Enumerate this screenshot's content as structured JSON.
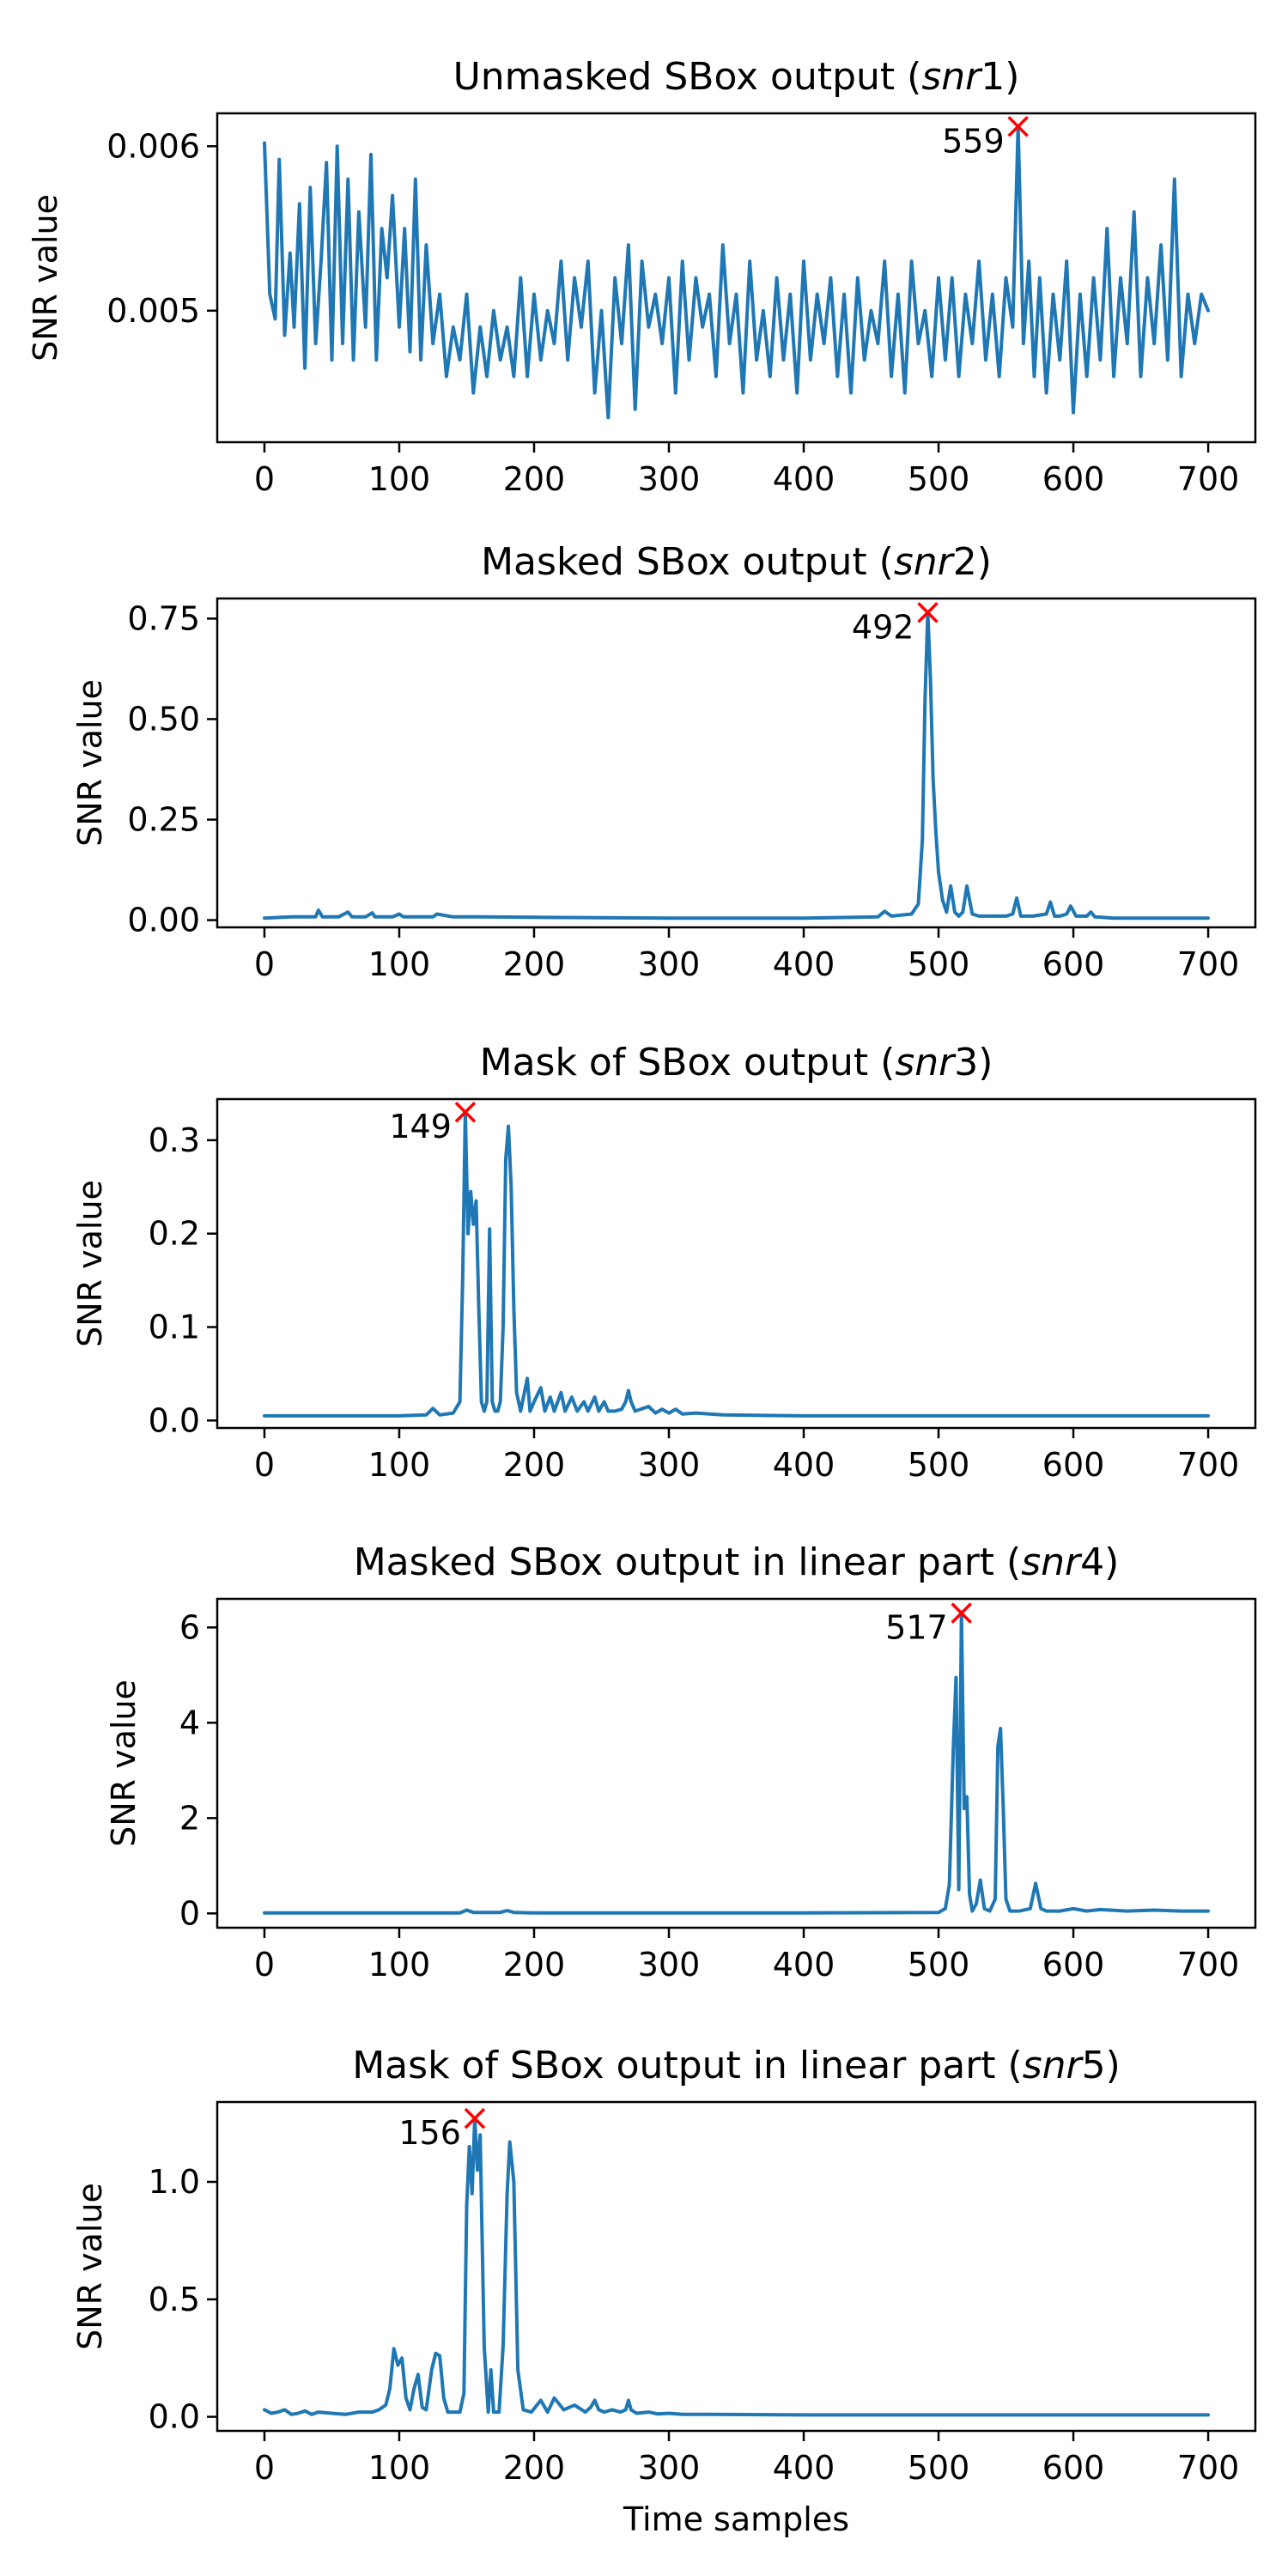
{
  "colors": {
    "series": "#1f77b4",
    "peak_marker": "#ff0000"
  },
  "chart_data": [
    {
      "type": "line",
      "title_prefix": "Unmasked SBox output (",
      "title_var": "snr",
      "title_suffix": "1)",
      "xlabel": "",
      "ylabel": "SNR value",
      "xlim": [
        -35,
        735
      ],
      "ylim": [
        0.0042,
        0.0062
      ],
      "xticks": [
        0,
        100,
        200,
        300,
        400,
        500,
        600,
        700
      ],
      "yticks": [
        0.005,
        0.006
      ],
      "ytick_labels": [
        "0.005",
        "0.006"
      ],
      "peak": {
        "x": 559,
        "y": 0.00612,
        "label": "559"
      },
      "series": [
        {
          "x": [
            0,
            4,
            8,
            11,
            15,
            19,
            22,
            26,
            30,
            34,
            38,
            42,
            46,
            50,
            54,
            58,
            62,
            66,
            70,
            75,
            79,
            83,
            87,
            91,
            95,
            100,
            104,
            108,
            112,
            116,
            120,
            125,
            130,
            135,
            140,
            145,
            150,
            155,
            160,
            165,
            170,
            175,
            180,
            185,
            190,
            195,
            200,
            205,
            210,
            215,
            220,
            225,
            230,
            235,
            240,
            245,
            250,
            255,
            260,
            265,
            270,
            275,
            280,
            285,
            290,
            295,
            300,
            305,
            310,
            315,
            320,
            325,
            330,
            335,
            340,
            345,
            350,
            355,
            360,
            365,
            370,
            375,
            380,
            385,
            390,
            395,
            400,
            405,
            410,
            415,
            420,
            425,
            430,
            435,
            440,
            445,
            450,
            455,
            460,
            465,
            470,
            475,
            480,
            485,
            490,
            495,
            500,
            505,
            510,
            515,
            520,
            525,
            530,
            535,
            540,
            545,
            550,
            555,
            559,
            563,
            567,
            571,
            575,
            580,
            585,
            590,
            595,
            600,
            605,
            610,
            615,
            620,
            625,
            630,
            635,
            640,
            645,
            650,
            655,
            660,
            665,
            670,
            675,
            680,
            685,
            690,
            695,
            700
          ],
          "values": [
            0.00602,
            0.0051,
            0.00495,
            0.00592,
            0.00485,
            0.00535,
            0.0049,
            0.00565,
            0.00465,
            0.00575,
            0.0048,
            0.0053,
            0.0059,
            0.0047,
            0.006,
            0.0048,
            0.0058,
            0.0047,
            0.0056,
            0.0049,
            0.00595,
            0.0047,
            0.0055,
            0.0052,
            0.0057,
            0.0049,
            0.0055,
            0.00475,
            0.0058,
            0.0047,
            0.0054,
            0.0048,
            0.0051,
            0.0046,
            0.0049,
            0.0047,
            0.0051,
            0.0045,
            0.0049,
            0.0046,
            0.005,
            0.0047,
            0.0049,
            0.0046,
            0.0052,
            0.0046,
            0.0051,
            0.0047,
            0.005,
            0.0048,
            0.0053,
            0.0047,
            0.0052,
            0.0049,
            0.0053,
            0.0045,
            0.005,
            0.00435,
            0.0052,
            0.0048,
            0.0054,
            0.0044,
            0.0053,
            0.0049,
            0.0051,
            0.0048,
            0.0052,
            0.0045,
            0.0053,
            0.0047,
            0.0052,
            0.0049,
            0.0051,
            0.0046,
            0.0054,
            0.0048,
            0.0051,
            0.0045,
            0.0053,
            0.0047,
            0.005,
            0.0046,
            0.0052,
            0.0047,
            0.0051,
            0.0045,
            0.0053,
            0.0047,
            0.0051,
            0.0048,
            0.0052,
            0.0046,
            0.0051,
            0.0045,
            0.0052,
            0.0047,
            0.005,
            0.0048,
            0.0053,
            0.0046,
            0.0051,
            0.0045,
            0.0053,
            0.0048,
            0.005,
            0.0046,
            0.0052,
            0.0047,
            0.0052,
            0.0046,
            0.0051,
            0.0048,
            0.0053,
            0.0047,
            0.0051,
            0.0046,
            0.0052,
            0.0049,
            0.00612,
            0.0048,
            0.0053,
            0.0046,
            0.0052,
            0.0045,
            0.0051,
            0.0047,
            0.0053,
            0.00438,
            0.0051,
            0.0046,
            0.0052,
            0.0047,
            0.0055,
            0.0046,
            0.0052,
            0.0048,
            0.0056,
            0.0046,
            0.0052,
            0.0048,
            0.0054,
            0.0047,
            0.0058,
            0.0046,
            0.0051,
            0.0048,
            0.0051,
            0.005
          ]
        }
      ]
    },
    {
      "type": "line",
      "title_prefix": "Masked SBox output (",
      "title_var": "snr",
      "title_suffix": "2)",
      "xlabel": "",
      "ylabel": "SNR value",
      "xlim": [
        -35,
        735
      ],
      "ylim": [
        -0.018,
        0.8
      ],
      "xticks": [
        0,
        100,
        200,
        300,
        400,
        500,
        600,
        700
      ],
      "yticks": [
        0,
        0.25,
        0.5,
        0.75
      ],
      "ytick_labels": [
        "0.00",
        "0.25",
        "0.50",
        "0.75"
      ],
      "peak": {
        "x": 492,
        "y": 0.765,
        "label": "492"
      },
      "series": [
        {
          "x": [
            0,
            20,
            38,
            40,
            43,
            55,
            62,
            65,
            75,
            80,
            82,
            95,
            100,
            103,
            115,
            125,
            128,
            140,
            160,
            200,
            300,
            400,
            455,
            460,
            465,
            480,
            485,
            488,
            490,
            492,
            494,
            496,
            498,
            500,
            503,
            506,
            509,
            512,
            515,
            518,
            521,
            525,
            530,
            540,
            550,
            555,
            558,
            561,
            565,
            570,
            580,
            583,
            586,
            590,
            595,
            598,
            602,
            610,
            613,
            616,
            630,
            700
          ],
          "values": [
            0.005,
            0.008,
            0.008,
            0.025,
            0.008,
            0.008,
            0.02,
            0.008,
            0.008,
            0.018,
            0.008,
            0.008,
            0.015,
            0.008,
            0.008,
            0.008,
            0.015,
            0.008,
            0.008,
            0.007,
            0.005,
            0.005,
            0.008,
            0.022,
            0.01,
            0.015,
            0.04,
            0.2,
            0.55,
            0.765,
            0.6,
            0.35,
            0.22,
            0.12,
            0.05,
            0.02,
            0.085,
            0.02,
            0.01,
            0.02,
            0.085,
            0.015,
            0.01,
            0.01,
            0.01,
            0.015,
            0.055,
            0.01,
            0.01,
            0.01,
            0.015,
            0.045,
            0.01,
            0.01,
            0.015,
            0.035,
            0.01,
            0.01,
            0.02,
            0.008,
            0.005,
            0.005
          ]
        }
      ]
    },
    {
      "type": "line",
      "title_prefix": "Mask of SBox output (",
      "title_var": "snr",
      "title_suffix": "3)",
      "xlabel": "",
      "ylabel": "SNR value",
      "xlim": [
        -35,
        735
      ],
      "ylim": [
        -0.008,
        0.344
      ],
      "xticks": [
        0,
        100,
        200,
        300,
        400,
        500,
        600,
        700
      ],
      "yticks": [
        0,
        0.1,
        0.2,
        0.3
      ],
      "ytick_labels": [
        "0.0",
        "0.1",
        "0.2",
        "0.3"
      ],
      "peak": {
        "x": 149,
        "y": 0.33,
        "label": "149"
      },
      "series": [
        {
          "x": [
            0,
            50,
            100,
            120,
            125,
            130,
            140,
            145,
            147,
            149,
            151,
            153,
            155,
            157,
            159,
            161,
            163,
            165,
            167,
            169,
            171,
            173,
            175,
            177,
            179,
            181,
            183,
            185,
            187,
            190,
            195,
            197,
            200,
            205,
            208,
            212,
            215,
            220,
            223,
            228,
            232,
            237,
            240,
            245,
            248,
            252,
            255,
            260,
            265,
            268,
            270,
            272,
            275,
            285,
            290,
            295,
            300,
            305,
            310,
            320,
            340,
            400,
            500,
            600,
            700
          ],
          "values": [
            0.005,
            0.005,
            0.005,
            0.006,
            0.013,
            0.006,
            0.008,
            0.02,
            0.15,
            0.33,
            0.2,
            0.245,
            0.21,
            0.235,
            0.12,
            0.02,
            0.01,
            0.02,
            0.205,
            0.02,
            0.01,
            0.01,
            0.02,
            0.1,
            0.28,
            0.315,
            0.25,
            0.12,
            0.03,
            0.01,
            0.045,
            0.01,
            0.02,
            0.035,
            0.01,
            0.025,
            0.01,
            0.03,
            0.01,
            0.025,
            0.01,
            0.02,
            0.01,
            0.025,
            0.01,
            0.02,
            0.01,
            0.01,
            0.012,
            0.02,
            0.032,
            0.02,
            0.01,
            0.015,
            0.008,
            0.012,
            0.008,
            0.012,
            0.007,
            0.008,
            0.006,
            0.005,
            0.005,
            0.005,
            0.005
          ]
        }
      ]
    },
    {
      "type": "line",
      "title_prefix": "Masked SBox output in linear part (",
      "title_var": "snr",
      "title_suffix": "4)",
      "xlabel": "",
      "ylabel": "SNR value",
      "xlim": [
        -35,
        735
      ],
      "ylim": [
        -0.3,
        6.6
      ],
      "xticks": [
        0,
        100,
        200,
        300,
        400,
        500,
        600,
        700
      ],
      "yticks": [
        0,
        2,
        4,
        6
      ],
      "ytick_labels": [
        "0",
        "2",
        "4",
        "6"
      ],
      "peak": {
        "x": 517,
        "y": 6.3,
        "label": "517"
      },
      "series": [
        {
          "x": [
            0,
            100,
            145,
            150,
            155,
            175,
            180,
            185,
            200,
            300,
            400,
            500,
            505,
            508,
            511,
            513,
            515,
            517,
            519,
            521,
            523,
            525,
            528,
            531,
            534,
            538,
            542,
            544,
            546,
            548,
            550,
            553,
            560,
            568,
            572,
            576,
            580,
            590,
            600,
            610,
            620,
            640,
            660,
            680,
            700
          ],
          "values": [
            0.01,
            0.01,
            0.01,
            0.07,
            0.02,
            0.02,
            0.06,
            0.02,
            0.01,
            0.01,
            0.01,
            0.02,
            0.1,
            0.6,
            3.5,
            4.95,
            0.5,
            6.3,
            2.2,
            2.45,
            0.4,
            0.05,
            0.2,
            0.7,
            0.1,
            0.05,
            0.3,
            3.5,
            3.88,
            2.2,
            0.3,
            0.05,
            0.05,
            0.1,
            0.63,
            0.1,
            0.05,
            0.05,
            0.1,
            0.05,
            0.08,
            0.05,
            0.07,
            0.05,
            0.05
          ]
        }
      ]
    },
    {
      "type": "line",
      "title_prefix": "Mask of SBox output in linear part (",
      "title_var": "snr",
      "title_suffix": "5)",
      "xlabel": "Time samples",
      "ylabel": "SNR value",
      "xlim": [
        -35,
        735
      ],
      "ylim": [
        -0.06,
        1.34
      ],
      "xticks": [
        0,
        100,
        200,
        300,
        400,
        500,
        600,
        700
      ],
      "yticks": [
        0,
        0.5,
        1.0
      ],
      "ytick_labels": [
        "0.0",
        "0.5",
        "1.0"
      ],
      "peak": {
        "x": 156,
        "y": 1.27,
        "label": "156"
      },
      "series": [
        {
          "x": [
            0,
            5,
            10,
            15,
            20,
            25,
            30,
            35,
            40,
            50,
            60,
            70,
            80,
            85,
            90,
            93,
            96,
            99,
            102,
            105,
            108,
            111,
            114,
            117,
            120,
            124,
            127,
            130,
            133,
            136,
            139,
            145,
            148,
            150,
            152,
            154,
            156,
            158,
            160,
            163,
            166,
            168,
            170,
            174,
            177,
            180,
            182,
            185,
            188,
            192,
            198,
            205,
            210,
            215,
            222,
            230,
            238,
            242,
            245,
            248,
            252,
            258,
            264,
            268,
            270,
            272,
            276,
            285,
            292,
            300,
            310,
            330,
            400,
            500,
            600,
            700
          ],
          "values": [
            0.03,
            0.015,
            0.02,
            0.03,
            0.01,
            0.015,
            0.025,
            0.01,
            0.02,
            0.015,
            0.01,
            0.02,
            0.02,
            0.03,
            0.05,
            0.12,
            0.29,
            0.22,
            0.25,
            0.08,
            0.03,
            0.12,
            0.18,
            0.04,
            0.03,
            0.2,
            0.27,
            0.26,
            0.08,
            0.02,
            0.02,
            0.02,
            0.1,
            0.9,
            1.15,
            0.95,
            1.27,
            1.05,
            1.2,
            0.3,
            0.02,
            0.2,
            0.02,
            0.02,
            0.3,
            0.95,
            1.17,
            1.0,
            0.2,
            0.03,
            0.02,
            0.07,
            0.02,
            0.08,
            0.03,
            0.05,
            0.02,
            0.04,
            0.07,
            0.03,
            0.02,
            0.03,
            0.02,
            0.03,
            0.07,
            0.03,
            0.015,
            0.02,
            0.012,
            0.015,
            0.01,
            0.01,
            0.008,
            0.008,
            0.008,
            0.008
          ]
        }
      ]
    }
  ]
}
